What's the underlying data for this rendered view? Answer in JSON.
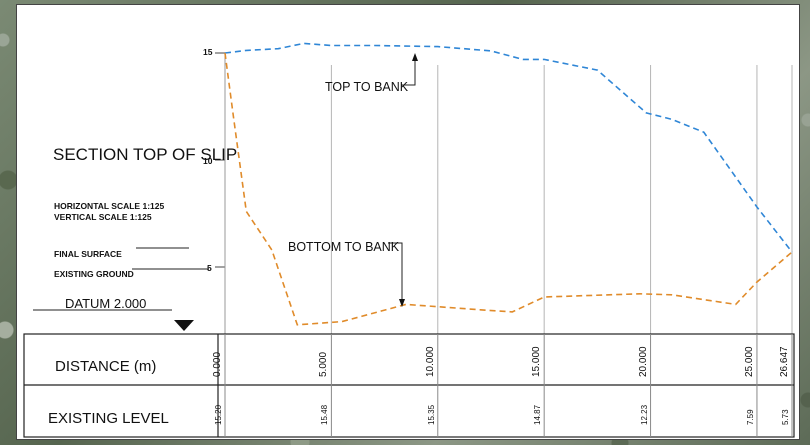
{
  "title": "SECTION TOP OF SLIP",
  "scales": {
    "horizontal": "HORIZONTAL SCALE   1:125",
    "vertical": "VERTICAL SCALE      1:125"
  },
  "legend": {
    "final_surface": "FINAL SURFACE",
    "existing_ground": "EXISTING GROUND"
  },
  "datum": "DATUM 2.000",
  "annotations": {
    "top": "TOP TO BANK",
    "bottom": "BOTTOM TO BANK"
  },
  "table": {
    "distance_label": "DISTANCE (m)",
    "level_label": "EXISTING LEVEL",
    "distances": [
      "0.000",
      "5.000",
      "10.000",
      "15.000",
      "20.000",
      "25.000",
      "26.647"
    ],
    "levels": [
      "15.20",
      "15.48",
      "15.35",
      "14.87",
      "12.23",
      "7.59",
      "5.73"
    ]
  },
  "chart_data": {
    "type": "line",
    "ylim": [
      2,
      15.5
    ],
    "xlim": [
      0,
      26.647
    ],
    "y_ticks": [
      "15",
      "10",
      "5"
    ],
    "grid_x": [
      0,
      5,
      10,
      15,
      20,
      25,
      26.647
    ],
    "series": [
      {
        "color": "#2f86d6",
        "points": [
          [
            0,
            15.0
          ],
          [
            1.0,
            15.12
          ],
          [
            2.5,
            15.2
          ],
          [
            3.7,
            15.45
          ],
          [
            5.0,
            15.35
          ],
          [
            7.0,
            15.35
          ],
          [
            10.0,
            15.3
          ],
          [
            12.5,
            15.1
          ],
          [
            14.0,
            14.7
          ],
          [
            15.0,
            14.7
          ],
          [
            17.5,
            14.2
          ],
          [
            19.8,
            12.2
          ],
          [
            21.0,
            11.9
          ],
          [
            22.5,
            11.3
          ],
          [
            24.0,
            9.2
          ],
          [
            25.0,
            7.8
          ],
          [
            26.647,
            5.7
          ]
        ]
      },
      {
        "color": "#e08b2a",
        "points": [
          [
            0,
            15.0
          ],
          [
            0.4,
            12.0
          ],
          [
            1.0,
            7.6
          ],
          [
            2.2,
            5.8
          ],
          [
            3.4,
            2.3
          ],
          [
            5.5,
            2.45
          ],
          [
            8.5,
            3.25
          ],
          [
            12.0,
            3.0
          ],
          [
            13.5,
            2.9
          ],
          [
            15.0,
            3.6
          ],
          [
            19.5,
            3.75
          ],
          [
            21.0,
            3.7
          ],
          [
            24.0,
            3.25
          ],
          [
            25.0,
            4.3
          ],
          [
            26.647,
            5.7
          ]
        ]
      }
    ]
  }
}
